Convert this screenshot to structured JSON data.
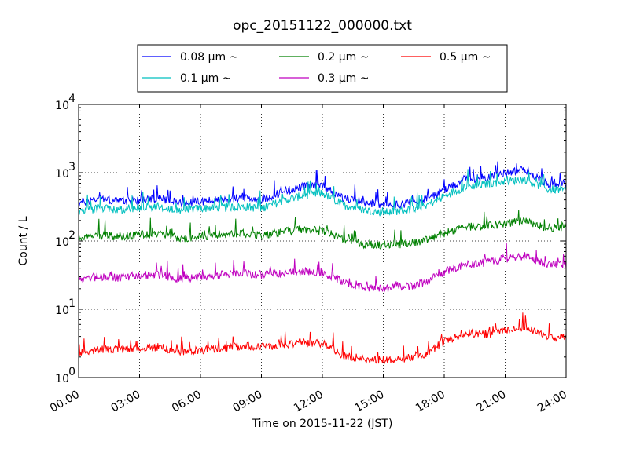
{
  "chart_data": {
    "type": "line",
    "title": "opc_20151122_000000.txt",
    "xlabel": "Time on 2015-11-22 (JST)",
    "ylabel": "Count / L",
    "yscale": "log",
    "xlim": [
      "00:00",
      "24:00"
    ],
    "ylim": [
      1,
      10000
    ],
    "grid": true,
    "legend": {
      "placement": "top-center",
      "columns": 3
    },
    "x_ticks": [
      "00:00",
      "03:00",
      "06:00",
      "09:00",
      "12:00",
      "15:00",
      "18:00",
      "21:00",
      "24:00"
    ],
    "y_ticks": [
      {
        "value": 1,
        "base": "10",
        "exp": "0"
      },
      {
        "value": 10,
        "base": "10",
        "exp": "1"
      },
      {
        "value": 100,
        "base": "10",
        "exp": "2"
      },
      {
        "value": 1000,
        "base": "10",
        "exp": "3"
      },
      {
        "value": 10000,
        "base": "10",
        "exp": "4"
      }
    ],
    "x": [
      "00:00",
      "01:00",
      "02:00",
      "03:00",
      "04:00",
      "05:00",
      "06:00",
      "07:00",
      "08:00",
      "09:00",
      "10:00",
      "11:00",
      "12:00",
      "13:00",
      "14:00",
      "15:00",
      "16:00",
      "17:00",
      "18:00",
      "19:00",
      "20:00",
      "21:00",
      "22:00",
      "23:00",
      "24:00"
    ],
    "series": [
      {
        "name": "0.08 μm ~",
        "color": "#0000ff",
        "values": [
          360,
          420,
          380,
          400,
          420,
          360,
          380,
          400,
          430,
          400,
          520,
          620,
          650,
          430,
          380,
          330,
          350,
          400,
          550,
          800,
          850,
          1000,
          1100,
          700,
          700
        ]
      },
      {
        "name": "0.1 μm ~",
        "color": "#00bfbf",
        "values": [
          270,
          300,
          290,
          310,
          320,
          280,
          300,
          310,
          320,
          300,
          380,
          460,
          500,
          340,
          290,
          260,
          280,
          320,
          450,
          620,
          680,
          750,
          800,
          580,
          550
        ]
      },
      {
        "name": "0.2 μm ~",
        "color": "#008000",
        "values": [
          115,
          120,
          115,
          125,
          125,
          110,
          115,
          125,
          130,
          120,
          135,
          150,
          140,
          110,
          90,
          85,
          90,
          100,
          130,
          160,
          165,
          180,
          200,
          150,
          170
        ]
      },
      {
        "name": "0.3 μm ~",
        "color": "#bf00bf",
        "values": [
          28,
          30,
          29,
          32,
          32,
          28,
          30,
          32,
          34,
          32,
          34,
          36,
          35,
          25,
          21,
          20,
          21,
          24,
          35,
          45,
          48,
          55,
          60,
          45,
          45
        ]
      },
      {
        "name": "0.5 μm ~",
        "color": "#ff0000",
        "values": [
          2.3,
          2.6,
          2.5,
          2.7,
          2.8,
          2.4,
          2.5,
          2.7,
          2.9,
          2.8,
          3.0,
          3.3,
          3.2,
          2.1,
          1.9,
          1.8,
          1.9,
          2.2,
          3.3,
          4.5,
          4.3,
          5.0,
          5.5,
          4.0,
          3.8
        ]
      }
    ],
    "colors": {
      "axes": "#000000",
      "grid": "#000000",
      "background": "#ffffff"
    }
  }
}
